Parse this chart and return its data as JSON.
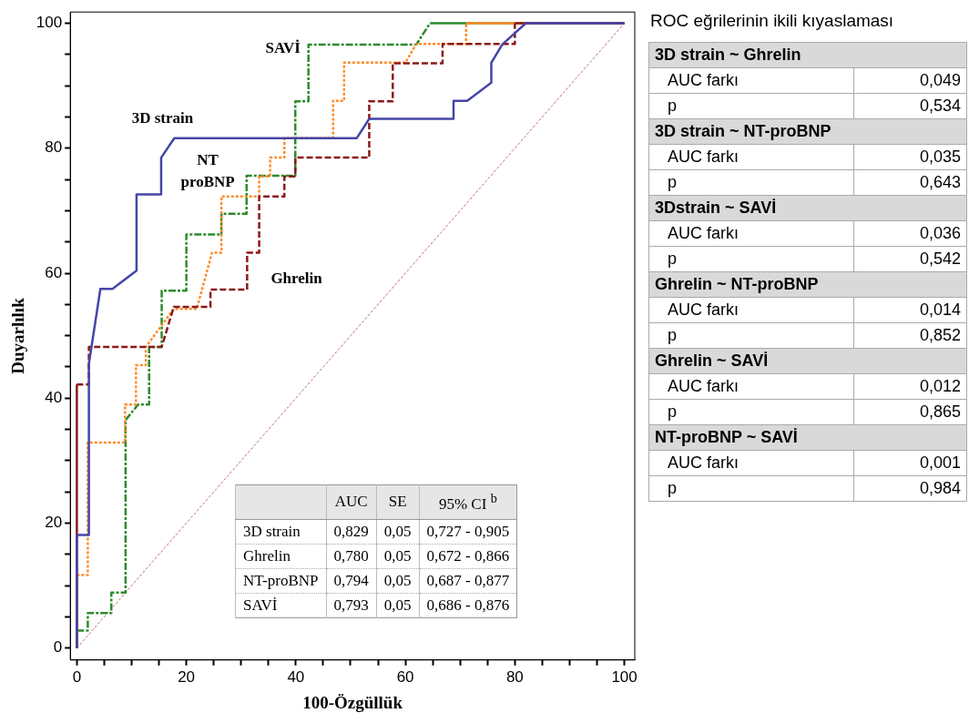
{
  "chart_data": [
    {
      "type": "line",
      "xlabel": "100-Özgüllük",
      "ylabel": "Duyarlılık",
      "xlim": [
        -1.2,
        101.9
      ],
      "ylim": [
        -1.9,
        101.8
      ],
      "xticks": [
        0,
        {
          "value": 5,
          "label": null
        },
        {
          "value": 10,
          "label": null
        },
        {
          "value": 15,
          "label": null
        },
        20,
        {
          "value": 25,
          "label": null
        },
        {
          "value": 30,
          "label": null
        },
        {
          "value": 35,
          "label": null
        },
        40,
        {
          "value": 45,
          "label": null
        },
        {
          "value": 50,
          "label": null
        },
        {
          "value": 55,
          "label": null
        },
        60,
        {
          "value": 65,
          "label": null
        },
        {
          "value": 70,
          "label": null
        },
        {
          "value": 75,
          "label": null
        },
        80,
        {
          "value": 85,
          "label": null
        },
        {
          "value": 90,
          "label": null
        },
        {
          "value": 95,
          "label": null
        },
        100
      ],
      "yticks": [
        0,
        {
          "value": 5,
          "label": null
        },
        {
          "value": 10,
          "label": null
        },
        {
          "value": 15,
          "label": null
        },
        20,
        {
          "value": 25,
          "label": null
        },
        {
          "value": 30,
          "label": null
        },
        {
          "value": 35,
          "label": null
        },
        40,
        {
          "value": 45,
          "label": null
        },
        {
          "value": 50,
          "label": null
        },
        {
          "value": 55,
          "label": null
        },
        60,
        {
          "value": 65,
          "label": null
        },
        {
          "value": 70,
          "label": null
        },
        {
          "value": 75,
          "label": null
        },
        80,
        {
          "value": 85,
          "label": null
        },
        {
          "value": 90,
          "label": null
        },
        {
          "value": 95,
          "label": null
        },
        100
      ],
      "grid": false,
      "legend": false,
      "marker": "none",
      "series": [
        {
          "name": "3D strain",
          "color": "#4545a8",
          "line_style": "solid",
          "x": [
            0,
            0,
            2.2,
            2.2,
            4.3,
            6.5,
            10.9,
            10.9,
            15.4,
            15.4,
            17.8,
            51.1,
            53.4,
            68.8,
            68.8,
            71.3,
            75.7,
            75.7,
            77.7,
            82,
            100
          ],
          "values": [
            0,
            18.1,
            18.1,
            45.5,
            57.5,
            57.5,
            60.4,
            72.6,
            72.6,
            78.5,
            81.6,
            81.6,
            84.7,
            84.7,
            87.6,
            87.6,
            90.5,
            93.7,
            96.6,
            100,
            100
          ]
        },
        {
          "name": "Ghrelin",
          "color": "#8b1a1a",
          "line_style": "dashed",
          "x": [
            0,
            0,
            2.2,
            2.2,
            15.5,
            17.7,
            24.4,
            24.4,
            31.1,
            31.1,
            33.3,
            33.3,
            37.9,
            37.9,
            39.9,
            39.9,
            53.4,
            53.4,
            57.7,
            57.7,
            66.8,
            66.8,
            80,
            80,
            100
          ],
          "values": [
            0,
            42.2,
            42.2,
            48.2,
            48.2,
            54.6,
            54.6,
            57.4,
            57.4,
            63.3,
            63.3,
            72.3,
            72.3,
            75.5,
            75.5,
            78.5,
            78.5,
            87.5,
            87.5,
            93.6,
            93.6,
            96.7,
            96.7,
            100,
            100
          ]
        },
        {
          "name": "NT proBNP",
          "color": "#ff8c2a",
          "line_style": "dotted",
          "x": [
            0,
            0,
            2,
            2,
            8.8,
            8.8,
            10.8,
            10.8,
            12.6,
            12.6,
            17.7,
            21.9,
            24.7,
            26.4,
            26.4,
            33.3,
            33.3,
            35.3,
            35.3,
            37.9,
            37.9,
            46.8,
            46.8,
            48.8,
            48.8,
            60,
            62,
            71.1,
            71.1,
            100
          ],
          "values": [
            0,
            11.7,
            11.7,
            32.9,
            32.9,
            39,
            39,
            45.3,
            45.3,
            48.2,
            54.3,
            54.3,
            63.3,
            63.3,
            72.3,
            72.3,
            75.5,
            75.5,
            78.5,
            78.5,
            81.6,
            81.6,
            87.6,
            87.6,
            93.7,
            93.7,
            96.7,
            96.7,
            100,
            100
          ]
        },
        {
          "name": "SAVİ",
          "color": "#2e8b2e",
          "line_style": "dashdot",
          "x": [
            0,
            0,
            2,
            2,
            6.3,
            6.3,
            8.9,
            8.9,
            11.2,
            13.2,
            13.2,
            15.5,
            15.5,
            20,
            20,
            26.4,
            26.4,
            31,
            31,
            39.9,
            39.9,
            42.3,
            42.3,
            62,
            64.5,
            100
          ],
          "values": [
            0,
            2.8,
            2.8,
            5.6,
            5.6,
            8.9,
            8.9,
            36.5,
            39,
            39,
            48.2,
            48.2,
            57.2,
            57.2,
            66.2,
            66.2,
            69.5,
            69.5,
            75.6,
            75.6,
            87.5,
            87.5,
            96.6,
            96.6,
            100,
            100
          ]
        },
        {
          "color": "#c07070",
          "line_style": "dotted",
          "x": [
            0,
            100
          ],
          "values": [
            0,
            100
          ]
        }
      ]
    },
    {
      "type": "other",
      "annotations": [
        "AUC",
        "SE",
        "95% CI $^{b}$",
        "3D strain",
        "0,829",
        "0,05",
        "0,727 - 0,905",
        "Ghrelin",
        "0,780",
        "0,05",
        "0,672 - 0,866",
        "NT-proBNP",
        "0,794",
        "0,05",
        "0,687 - 0,877",
        "SAVİ",
        "0,793",
        "0,05",
        "0,686 - 0,876"
      ]
    },
    {
      "type": "other",
      "title": "ROC eğrilerinin ikili kıyaslaması",
      "annotations": [
        "3D strain ~ Ghrelin",
        "AUC farkı",
        "0,049",
        "p",
        "0,534",
        "3D strain ~ NT-proBNP",
        "AUC farkı",
        "0,035",
        "p",
        "0,643",
        "3Dstrain ~ SAVİ",
        "AUC farkı",
        "0,036",
        "p",
        "0,542",
        "Ghrelin ~ NT-proBNP",
        "AUC farkı",
        "0,014",
        "p",
        "0,852",
        "Ghrelin ~ SAVİ",
        "AUC farkı",
        "0,012",
        "p",
        "0,865",
        "NT-proBNP ~ SAVİ",
        "AUC farkı",
        "0,001",
        "p",
        "0,984"
      ]
    }
  ]
}
